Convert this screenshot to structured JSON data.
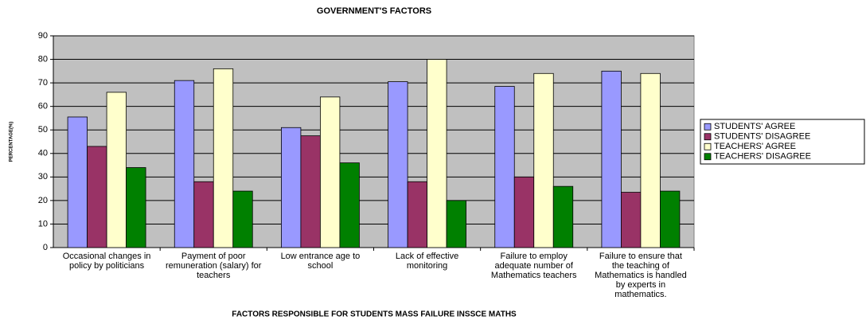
{
  "chart_data": {
    "type": "bar",
    "title": "GOVERNMENT'S FACTORS",
    "x_label": "FACTORS RESPONSIBLE FOR STUDENTS MASS FAILURE INSSCE MATHS",
    "y_label": "PERCENTAGE(%)",
    "categories": [
      "Occasional changes in policy by politicians",
      "Payment of poor remuneration (salary) for teachers",
      "Low entrance age to school",
      "Lack of effective monitoring",
      "Failure to employ adequate number of Mathematics teachers",
      "Failure to ensure that the teaching of Mathematics is handled by experts in mathematics."
    ],
    "series": [
      {
        "name": "STUDENTS' AGREE",
        "color": "#9999ff",
        "values": [
          55.5,
          71,
          51,
          70.5,
          68.5,
          75
        ]
      },
      {
        "name": "STUDENTS' DISAGREE",
        "color": "#993366",
        "values": [
          43,
          28,
          47.5,
          28,
          30,
          23.5
        ]
      },
      {
        "name": "TEACHERS' AGREE",
        "color": "#ffffcc",
        "values": [
          66,
          76,
          64,
          80,
          74,
          74
        ]
      },
      {
        "name": "TEACHERS' DISAGREE",
        "color": "#008000",
        "values": [
          34,
          24,
          36,
          20,
          26,
          24
        ]
      }
    ],
    "ylim": [
      0,
      90
    ],
    "yticks": [
      0,
      10,
      20,
      30,
      40,
      50,
      60,
      70,
      80,
      90
    ],
    "grid": true,
    "legend": "right"
  }
}
